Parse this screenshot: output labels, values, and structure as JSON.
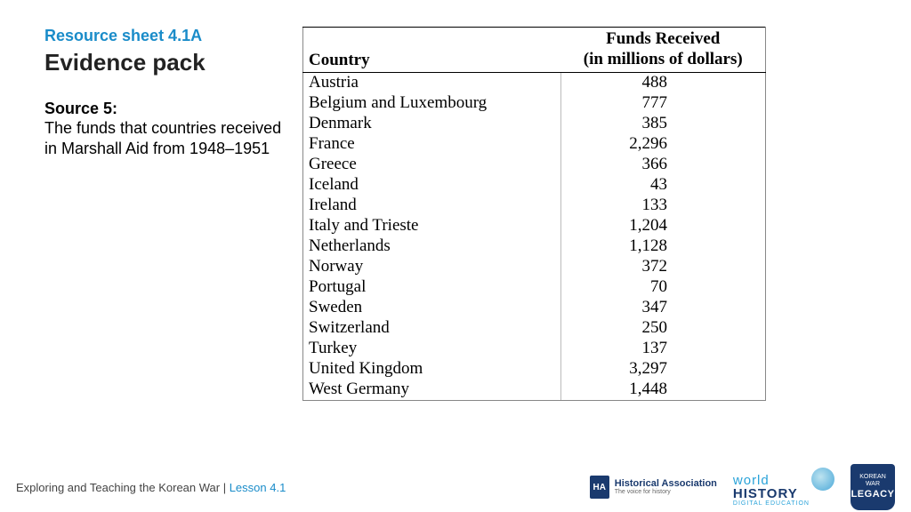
{
  "header": {
    "resource_label": "Resource sheet 4.1A",
    "title": "Evidence pack",
    "source_label": "Source 5:",
    "source_desc": "The funds that countries received in Marshall Aid from 1948–1951"
  },
  "table": {
    "col_country": "Country",
    "col_funds_line1": "Funds Received",
    "col_funds_line2": "(in millions of dollars)",
    "rows": [
      {
        "country": "Austria",
        "value": "488"
      },
      {
        "country": "Belgium and Luxembourg",
        "value": "777"
      },
      {
        "country": "Denmark",
        "value": "385"
      },
      {
        "country": "France",
        "value": "2,296"
      },
      {
        "country": "Greece",
        "value": "366"
      },
      {
        "country": "Iceland",
        "value": "43"
      },
      {
        "country": "Ireland",
        "value": "133"
      },
      {
        "country": "Italy and Trieste",
        "value": "1,204"
      },
      {
        "country": "Netherlands",
        "value": "1,128"
      },
      {
        "country": "Norway",
        "value": "372"
      },
      {
        "country": "Portugal",
        "value": "70"
      },
      {
        "country": "Sweden",
        "value": "347"
      },
      {
        "country": "Switzerland",
        "value": "250"
      },
      {
        "country": "Turkey",
        "value": "137"
      },
      {
        "country": "United Kingdom",
        "value": "3,297"
      },
      {
        "country": "West Germany",
        "value": "1,448"
      }
    ]
  },
  "footer": {
    "text": "Exploring and Teaching the Korean War",
    "sep": " | ",
    "lesson": "Lesson 4.1",
    "logo_ha_abbr": "HA",
    "logo_ha_name": "Historical Association",
    "logo_ha_tag": "The voice for history",
    "logo_wh_world": "world",
    "logo_wh_history": "HISTORY",
    "logo_wh_digital": "DIGITAL EDUCATION",
    "logo_kw_line1": "KOREAN WAR",
    "logo_kw_line2": "LEGACY"
  },
  "colors": {
    "accent_blue": "#1a8cc9",
    "dark_navy": "#1a3a6e"
  }
}
